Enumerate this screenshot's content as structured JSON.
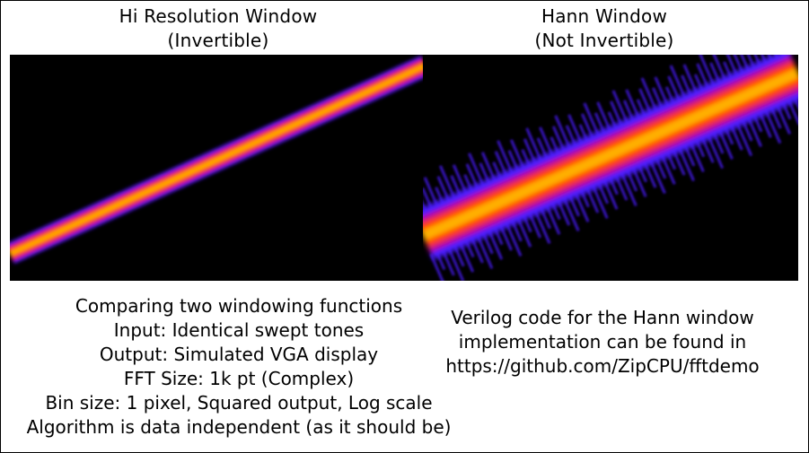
{
  "left_panel": {
    "title_line1": "Hi Resolution Window",
    "title_line2": "(Invertible)"
  },
  "right_panel": {
    "title_line1": "Hann Window",
    "title_line2": "(Not Invertible)"
  },
  "left_caption": [
    "Comparing two windowing functions",
    "Input: Identical swept tones",
    "Output: Simulated VGA display",
    "FFT Size: 1k pt  (Complex)",
    "Bin size: 1 pixel, Squared output, Log scale",
    "Algorithm is data independent (as it should be)"
  ],
  "right_caption": [
    "Verilog code for the Hann window",
    "implementation can be found in",
    "https://github.com/ZipCPU/fftdemo"
  ],
  "colors": {
    "background": "#000000",
    "core": "#ffb000",
    "mid": "#ff3a00",
    "edge": "#c0008a",
    "fringe": "#4a1cff"
  }
}
